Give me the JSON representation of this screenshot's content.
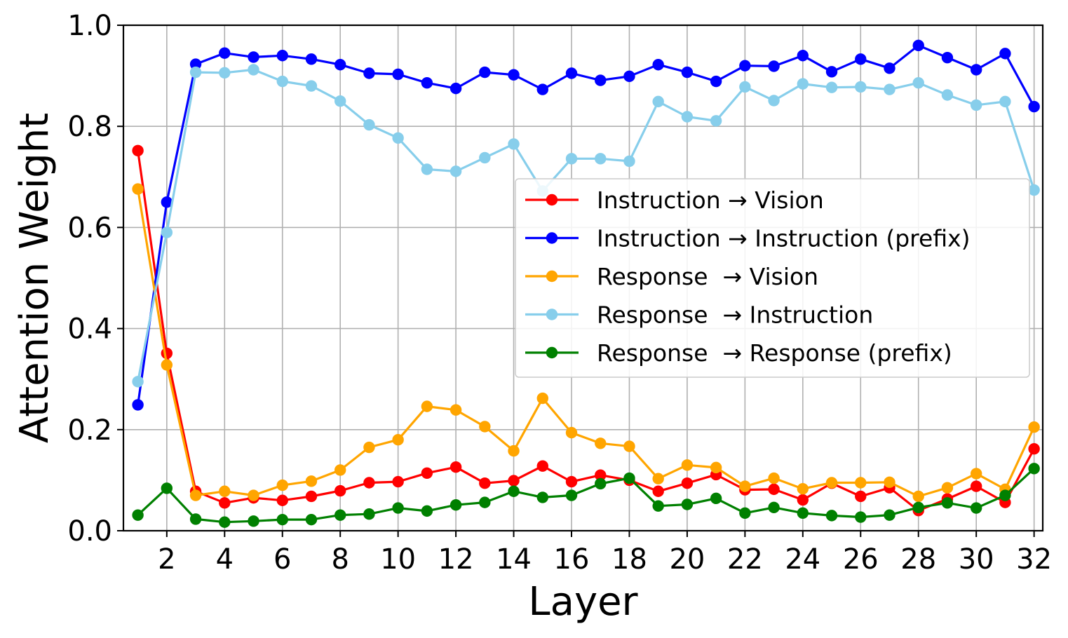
{
  "chart_data": {
    "type": "line",
    "xlabel": "Layer",
    "ylabel": "Attention Weight",
    "xlim": [
      0.5,
      32.3
    ],
    "ylim": [
      0.0,
      1.0
    ],
    "xticks": [
      2,
      4,
      6,
      8,
      10,
      12,
      14,
      16,
      18,
      20,
      22,
      24,
      26,
      28,
      30,
      32
    ],
    "yticks": [
      0.0,
      0.2,
      0.4,
      0.6,
      0.8,
      1.0
    ],
    "ytick_labels": [
      "0.0",
      "0.2",
      "0.4",
      "0.6",
      "0.8",
      "1.0"
    ],
    "grid": true,
    "legend_placement": "center-right",
    "x": [
      1,
      2,
      3,
      4,
      5,
      6,
      7,
      8,
      9,
      10,
      11,
      12,
      13,
      14,
      15,
      16,
      17,
      18,
      19,
      20,
      21,
      22,
      23,
      24,
      25,
      26,
      27,
      28,
      29,
      30,
      31,
      32
    ],
    "series": [
      {
        "name": "Instruction → Vision",
        "color": "#ff0000",
        "values": [
          0.752,
          0.351,
          0.078,
          0.055,
          0.065,
          0.06,
          0.068,
          0.079,
          0.095,
          0.097,
          0.114,
          0.126,
          0.094,
          0.099,
          0.128,
          0.097,
          0.11,
          0.1,
          0.078,
          0.094,
          0.111,
          0.081,
          0.082,
          0.061,
          0.094,
          0.068,
          0.085,
          0.04,
          0.063,
          0.088,
          0.056,
          0.162
        ]
      },
      {
        "name": "Instruction → Instruction (prefix)",
        "color": "#0000ff",
        "values": [
          0.249,
          0.65,
          0.923,
          0.945,
          0.937,
          0.94,
          0.933,
          0.922,
          0.905,
          0.903,
          0.886,
          0.875,
          0.907,
          0.902,
          0.873,
          0.905,
          0.891,
          0.899,
          0.922,
          0.907,
          0.889,
          0.92,
          0.919,
          0.94,
          0.908,
          0.933,
          0.915,
          0.96,
          0.936,
          0.912,
          0.944,
          0.839
        ]
      },
      {
        "name": "Response  → Vision",
        "color": "#ffa500",
        "values": [
          0.676,
          0.328,
          0.07,
          0.078,
          0.07,
          0.09,
          0.098,
          0.12,
          0.165,
          0.18,
          0.246,
          0.239,
          0.206,
          0.158,
          0.262,
          0.194,
          0.173,
          0.167,
          0.103,
          0.13,
          0.125,
          0.088,
          0.104,
          0.083,
          0.095,
          0.095,
          0.096,
          0.068,
          0.085,
          0.113,
          0.082,
          0.205
        ]
      },
      {
        "name": "Response  → Instruction",
        "color": "#87ceeb",
        "values": [
          0.295,
          0.59,
          0.907,
          0.906,
          0.912,
          0.889,
          0.88,
          0.85,
          0.803,
          0.777,
          0.715,
          0.711,
          0.738,
          0.765,
          0.672,
          0.736,
          0.736,
          0.731,
          0.849,
          0.819,
          0.811,
          0.878,
          0.851,
          0.884,
          0.877,
          0.878,
          0.873,
          0.886,
          0.862,
          0.842,
          0.849,
          0.674
        ]
      },
      {
        "name": "Response  → Response (prefix)",
        "color": "#008000",
        "values": [
          0.031,
          0.084,
          0.023,
          0.017,
          0.019,
          0.022,
          0.022,
          0.031,
          0.033,
          0.045,
          0.039,
          0.051,
          0.056,
          0.078,
          0.066,
          0.07,
          0.093,
          0.104,
          0.049,
          0.052,
          0.064,
          0.035,
          0.046,
          0.035,
          0.03,
          0.027,
          0.031,
          0.046,
          0.055,
          0.045,
          0.07,
          0.123
        ]
      }
    ]
  }
}
